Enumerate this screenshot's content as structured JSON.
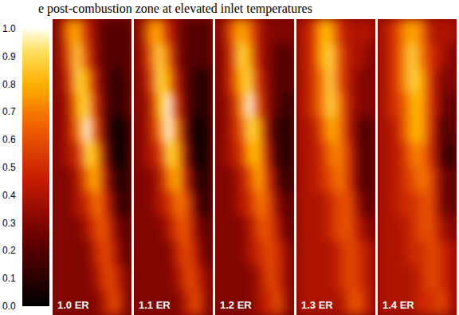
{
  "chart_data": {
    "type": "heatmap",
    "title": "e post-combustion zone at elevated inlet temperatures",
    "tick_labels": false,
    "colorbar": {
      "range": [
        0,
        1
      ],
      "ticks": [
        {
          "value": 0,
          "label": "0.0"
        },
        {
          "value": 0.1,
          "label": "0.1"
        },
        {
          "value": 0.2,
          "label": "0.2"
        },
        {
          "value": 0.3,
          "label": "0.3"
        },
        {
          "value": 0.4,
          "label": "0.4"
        },
        {
          "value": 0.5,
          "label": "0.5"
        },
        {
          "value": 0.6,
          "label": "0.6"
        },
        {
          "value": 0.7,
          "label": "0.7"
        },
        {
          "value": 0.8,
          "label": "0.8"
        },
        {
          "value": 0.9,
          "label": "0.9"
        },
        {
          "value": 1,
          "label": "1.0"
        }
      ]
    },
    "panels": [
      {
        "label": "1.0 ER",
        "cells": [
          [
            0.3,
            0.7,
            0.8,
            0.5,
            0.3,
            0.2,
            0.2,
            0.2
          ],
          [
            0.3,
            0.6,
            0.9,
            0.6,
            0.3,
            0.2,
            0.2,
            0.2
          ],
          [
            0.3,
            0.5,
            0.9,
            0.8,
            0.4,
            0.2,
            0.1,
            0.2
          ],
          [
            0.3,
            0.4,
            0.8,
            0.9,
            0.5,
            0.2,
            0.1,
            0.2
          ],
          [
            0.3,
            0.4,
            0.7,
            1.0,
            0.6,
            0.2,
            0.0,
            0.1
          ],
          [
            0.3,
            0.4,
            0.5,
            0.9,
            0.8,
            0.3,
            0.0,
            0.1
          ],
          [
            0.3,
            0.3,
            0.4,
            0.7,
            0.8,
            0.4,
            0.1,
            0.1
          ],
          [
            0.3,
            0.3,
            0.4,
            0.5,
            0.7,
            0.5,
            0.2,
            0.1
          ],
          [
            0.3,
            0.3,
            0.3,
            0.4,
            0.6,
            0.6,
            0.3,
            0.2
          ],
          [
            0.3,
            0.3,
            0.3,
            0.3,
            0.5,
            0.6,
            0.4,
            0.2
          ],
          [
            0.3,
            0.3,
            0.3,
            0.3,
            0.4,
            0.6,
            0.5,
            0.3
          ],
          [
            0.3,
            0.3,
            0.3,
            0.3,
            0.3,
            0.5,
            0.6,
            0.3
          ]
        ]
      },
      {
        "label": "1.1 ER",
        "cells": [
          [
            0.3,
            0.7,
            0.8,
            0.5,
            0.3,
            0.2,
            0.2,
            0.2
          ],
          [
            0.3,
            0.6,
            0.9,
            0.7,
            0.3,
            0.2,
            0.2,
            0.2
          ],
          [
            0.3,
            0.5,
            0.9,
            0.8,
            0.4,
            0.2,
            0.1,
            0.1
          ],
          [
            0.3,
            0.4,
            0.8,
            1.0,
            0.5,
            0.2,
            0.1,
            0.1
          ],
          [
            0.3,
            0.4,
            0.7,
            1.0,
            0.7,
            0.2,
            0.0,
            0.1
          ],
          [
            0.3,
            0.4,
            0.5,
            0.9,
            0.8,
            0.3,
            0.0,
            0.1
          ],
          [
            0.3,
            0.3,
            0.4,
            0.7,
            0.8,
            0.4,
            0.1,
            0.1
          ],
          [
            0.3,
            0.3,
            0.4,
            0.5,
            0.7,
            0.6,
            0.2,
            0.1
          ],
          [
            0.3,
            0.3,
            0.3,
            0.4,
            0.6,
            0.6,
            0.3,
            0.2
          ],
          [
            0.3,
            0.3,
            0.3,
            0.3,
            0.5,
            0.6,
            0.4,
            0.2
          ],
          [
            0.3,
            0.3,
            0.3,
            0.3,
            0.4,
            0.6,
            0.5,
            0.3
          ],
          [
            0.3,
            0.3,
            0.3,
            0.3,
            0.3,
            0.5,
            0.6,
            0.3
          ]
        ]
      },
      {
        "label": "1.2 ER",
        "cells": [
          [
            0.3,
            0.6,
            0.8,
            0.7,
            0.4,
            0.3,
            0.3,
            0.3
          ],
          [
            0.3,
            0.5,
            0.9,
            0.8,
            0.4,
            0.3,
            0.2,
            0.2
          ],
          [
            0.3,
            0.5,
            0.8,
            0.9,
            0.5,
            0.3,
            0.2,
            0.2
          ],
          [
            0.3,
            0.4,
            0.7,
            1.0,
            0.6,
            0.3,
            0.2,
            0.1
          ],
          [
            0.3,
            0.4,
            0.6,
            0.9,
            0.8,
            0.3,
            0.1,
            0.1
          ],
          [
            0.3,
            0.4,
            0.5,
            0.8,
            0.8,
            0.4,
            0.1,
            0.1
          ],
          [
            0.3,
            0.3,
            0.4,
            0.6,
            0.8,
            0.5,
            0.2,
            0.1
          ],
          [
            0.3,
            0.3,
            0.4,
            0.5,
            0.7,
            0.6,
            0.3,
            0.2
          ],
          [
            0.3,
            0.3,
            0.3,
            0.4,
            0.6,
            0.6,
            0.4,
            0.2
          ],
          [
            0.3,
            0.3,
            0.3,
            0.4,
            0.5,
            0.6,
            0.5,
            0.3
          ],
          [
            0.3,
            0.3,
            0.3,
            0.3,
            0.4,
            0.6,
            0.5,
            0.3
          ],
          [
            0.3,
            0.3,
            0.3,
            0.3,
            0.4,
            0.5,
            0.6,
            0.3
          ]
        ]
      },
      {
        "label": "1.3 ER",
        "cells": [
          [
            0.4,
            0.5,
            0.8,
            0.8,
            0.5,
            0.4,
            0.4,
            0.4
          ],
          [
            0.4,
            0.5,
            0.8,
            0.9,
            0.6,
            0.4,
            0.4,
            0.3
          ],
          [
            0.4,
            0.5,
            0.7,
            0.9,
            0.6,
            0.4,
            0.3,
            0.3
          ],
          [
            0.4,
            0.5,
            0.7,
            0.9,
            0.7,
            0.4,
            0.3,
            0.3
          ],
          [
            0.4,
            0.4,
            0.6,
            0.8,
            0.7,
            0.4,
            0.2,
            0.2
          ],
          [
            0.4,
            0.4,
            0.5,
            0.7,
            0.7,
            0.5,
            0.2,
            0.2
          ],
          [
            0.4,
            0.4,
            0.5,
            0.6,
            0.7,
            0.5,
            0.2,
            0.2
          ],
          [
            0.4,
            0.4,
            0.4,
            0.5,
            0.6,
            0.6,
            0.3,
            0.2
          ],
          [
            0.4,
            0.4,
            0.4,
            0.5,
            0.6,
            0.6,
            0.4,
            0.3
          ],
          [
            0.4,
            0.4,
            0.4,
            0.4,
            0.5,
            0.6,
            0.5,
            0.4
          ],
          [
            0.4,
            0.4,
            0.4,
            0.4,
            0.5,
            0.6,
            0.5,
            0.4
          ],
          [
            0.4,
            0.4,
            0.4,
            0.4,
            0.4,
            0.6,
            0.6,
            0.4
          ]
        ]
      },
      {
        "label": "1.4 ER",
        "cells": [
          [
            0.4,
            0.5,
            0.7,
            0.8,
            0.7,
            0.4,
            0.4,
            0.4
          ],
          [
            0.4,
            0.5,
            0.7,
            0.9,
            0.7,
            0.5,
            0.4,
            0.3
          ],
          [
            0.4,
            0.5,
            0.7,
            0.9,
            0.8,
            0.5,
            0.3,
            0.3
          ],
          [
            0.4,
            0.5,
            0.6,
            0.8,
            0.8,
            0.5,
            0.3,
            0.2
          ],
          [
            0.4,
            0.4,
            0.6,
            0.8,
            0.8,
            0.5,
            0.2,
            0.2
          ],
          [
            0.4,
            0.4,
            0.5,
            0.7,
            0.7,
            0.5,
            0.2,
            0.1
          ],
          [
            0.4,
            0.4,
            0.5,
            0.6,
            0.7,
            0.6,
            0.3,
            0.2
          ],
          [
            0.4,
            0.4,
            0.5,
            0.5,
            0.6,
            0.6,
            0.3,
            0.2
          ],
          [
            0.4,
            0.4,
            0.4,
            0.5,
            0.6,
            0.6,
            0.4,
            0.3
          ],
          [
            0.4,
            0.4,
            0.4,
            0.5,
            0.5,
            0.6,
            0.5,
            0.4
          ],
          [
            0.4,
            0.4,
            0.4,
            0.4,
            0.5,
            0.6,
            0.5,
            0.4
          ],
          [
            0.4,
            0.4,
            0.4,
            0.4,
            0.5,
            0.5,
            0.6,
            0.4
          ]
        ]
      }
    ]
  }
}
